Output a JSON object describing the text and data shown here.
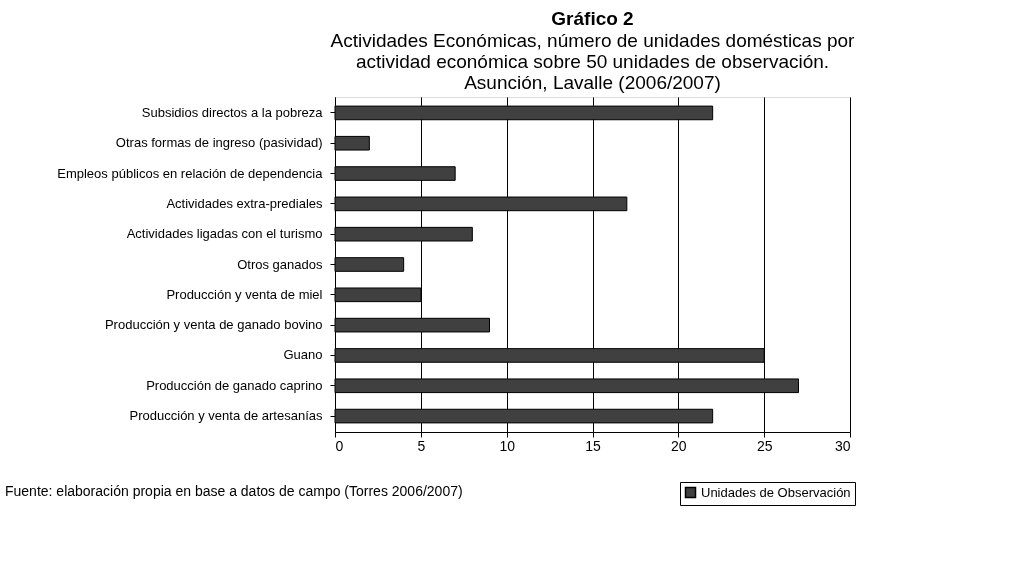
{
  "chart_data": {
    "type": "bar",
    "orientation": "horizontal",
    "title": "Gráfico 2",
    "subtitle": "Actividades Económicas, número de unidades domésticas por\nactividad económica sobre 50 unidades de observación.\nAsunción, Lavalle (2006/2007)",
    "categories": [
      "Subsidios directos a la pobreza",
      "Otras formas de ingreso (pasividad)",
      "Empleos públicos en relación de dependencia",
      "Actividades extra-prediales",
      "Actividades ligadas con el turismo",
      "Otros ganados",
      "Producción y venta de miel",
      "Producción y venta de ganado bovino",
      "Guano",
      "Producción de ganado caprino",
      "Producción y venta de artesanías"
    ],
    "series": [
      {
        "name": "Unidades de Observación",
        "color": "#404040",
        "values": [
          22,
          2,
          7,
          17,
          8,
          4,
          5,
          9,
          25,
          27,
          22
        ]
      }
    ],
    "xlim": [
      0,
      30
    ],
    "xticks": [
      0,
      5,
      10,
      15,
      20,
      25,
      30
    ],
    "grid": "x",
    "legend": "bottom right",
    "annotations": [
      "Fuente: elaboración propia en base a datos de campo (Torres 2006/2007)"
    ]
  }
}
